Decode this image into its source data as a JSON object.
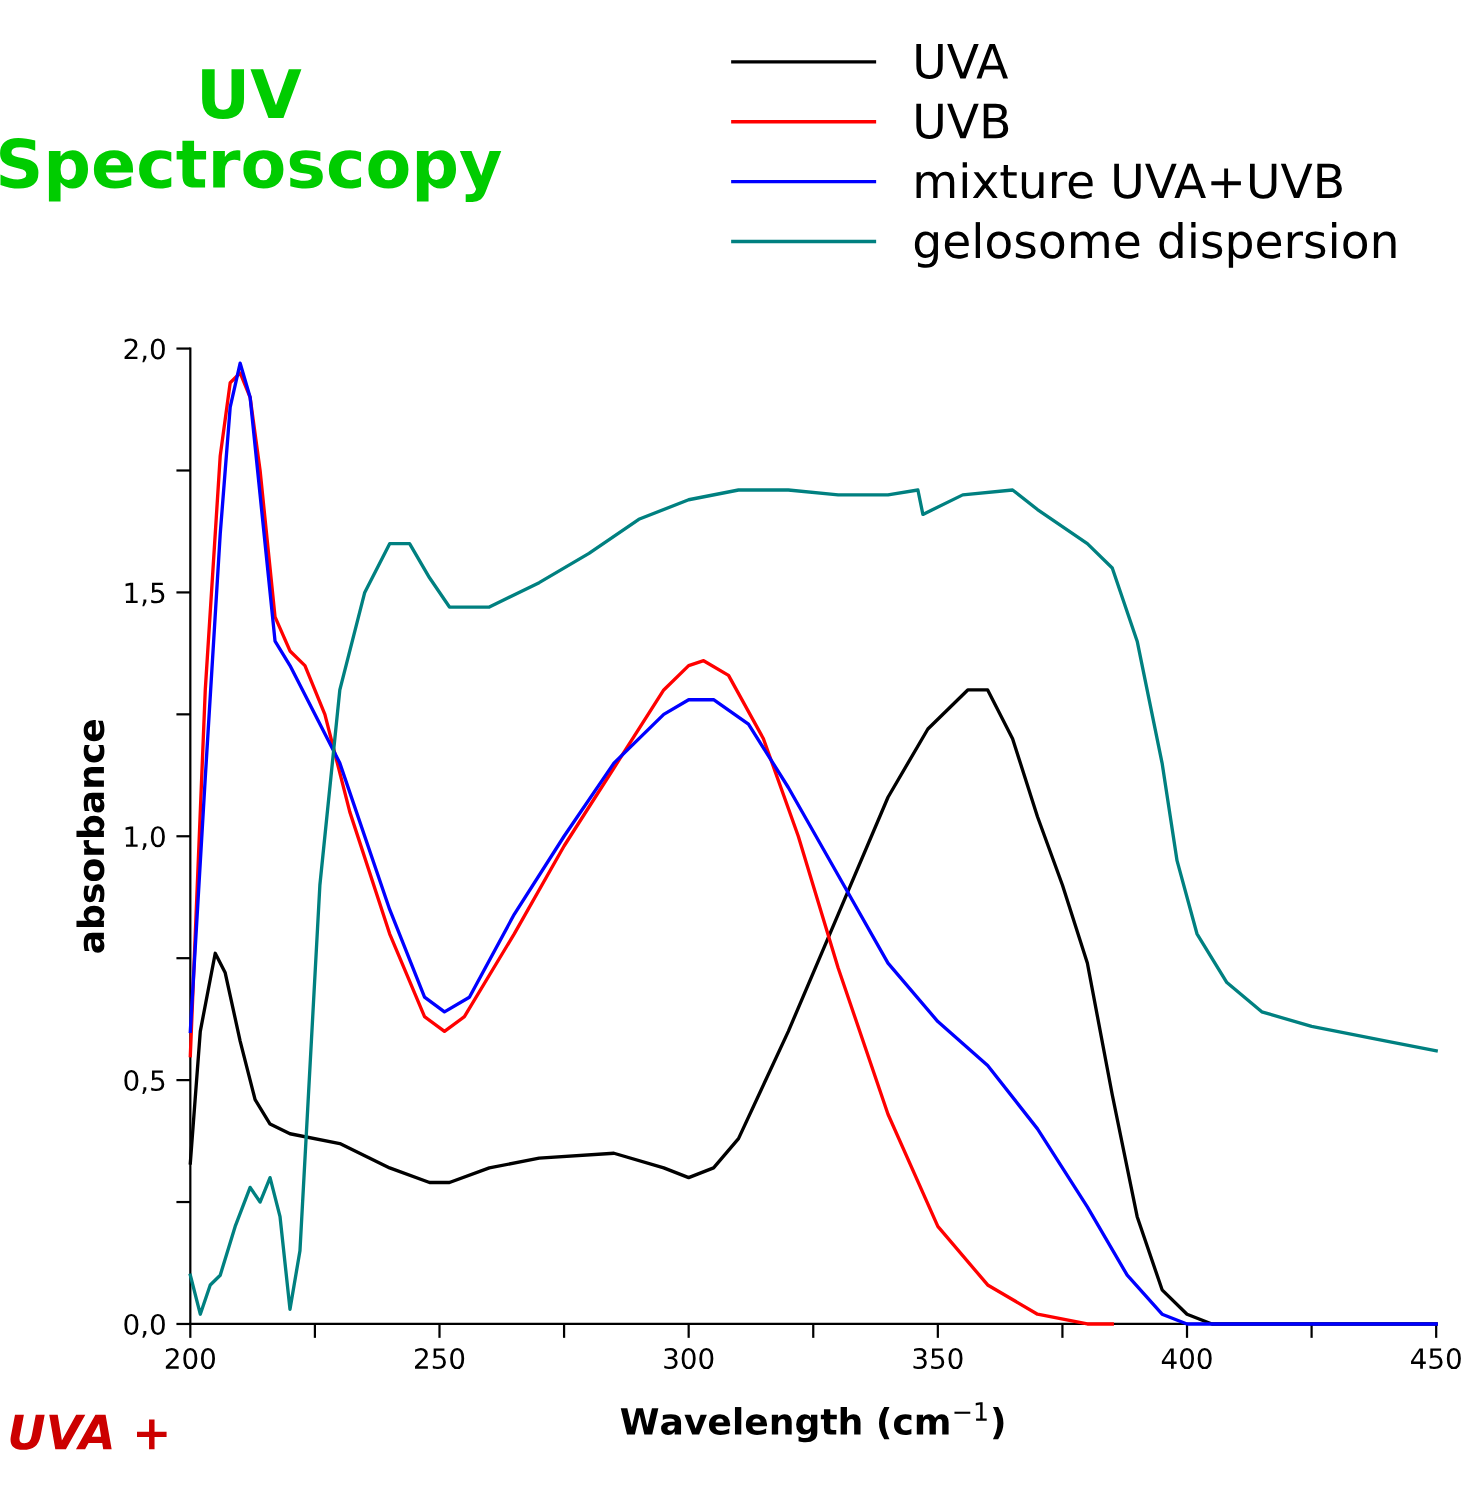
{
  "chart_data": {
    "type": "line",
    "title": "UV Spectroscopy",
    "xlabel": "Wavelength (cm$^{−1}$)",
    "ylabel": "absorbance",
    "annotations": [
      "UVA +"
    ],
    "xlim": [
      200,
      450
    ],
    "ylim": [
      0,
      2.0
    ],
    "xticks": [
      200,
      {
        "value": 225,
        "label": null
      },
      250,
      {
        "value": 275,
        "label": null
      },
      300,
      {
        "value": 325,
        "label": null
      },
      350,
      {
        "value": 375,
        "label": null
      },
      400,
      {
        "value": 425,
        "label": null
      },
      450
    ],
    "yticks": [
      {
        "value": 0,
        "label": "0,0"
      },
      {
        "value": 0.25,
        "label": null
      },
      {
        "value": 0.5,
        "label": "0,5"
      },
      {
        "value": 0.75,
        "label": null
      },
      {
        "value": 1.0,
        "label": "1,0"
      },
      {
        "value": 1.25,
        "label": null
      },
      {
        "value": 1.5,
        "label": "1,5"
      },
      {
        "value": 1.75,
        "label": null
      },
      {
        "value": 2.0,
        "label": "2,0"
      }
    ],
    "grid": false,
    "legend": "top right",
    "line_style": "solid",
    "marker": "none",
    "series": [
      {
        "name": "UVA",
        "color": "#000000",
        "x": [
          200,
          202,
          205,
          207,
          210,
          213,
          216,
          220,
          230,
          240,
          248,
          252,
          260,
          270,
          285,
          295,
          300,
          305,
          310,
          320,
          330,
          340,
          348,
          352,
          356,
          360,
          365,
          370,
          375,
          380,
          385,
          390,
          395,
          400,
          405,
          450
        ],
        "values": [
          0.33,
          0.6,
          0.76,
          0.72,
          0.58,
          0.46,
          0.41,
          0.39,
          0.37,
          0.32,
          0.29,
          0.29,
          0.32,
          0.34,
          0.35,
          0.32,
          0.3,
          0.32,
          0.38,
          0.6,
          0.84,
          1.08,
          1.22,
          1.26,
          1.3,
          1.3,
          1.2,
          1.04,
          0.9,
          0.74,
          0.47,
          0.22,
          0.07,
          0.02,
          0.0,
          0.0
        ]
      },
      {
        "name": "UVB",
        "color": "#ff0000",
        "x": [
          200,
          203,
          206,
          208,
          210,
          212,
          214,
          217,
          220,
          223,
          227,
          232,
          240,
          247,
          251,
          255,
          265,
          275,
          285,
          295,
          300,
          303,
          308,
          315,
          322,
          330,
          340,
          350,
          360,
          370,
          380,
          385
        ],
        "values": [
          0.55,
          1.3,
          1.78,
          1.93,
          1.95,
          1.9,
          1.75,
          1.45,
          1.38,
          1.35,
          1.25,
          1.05,
          0.8,
          0.63,
          0.6,
          0.63,
          0.8,
          0.98,
          1.14,
          1.3,
          1.35,
          1.36,
          1.33,
          1.2,
          1.0,
          0.73,
          0.43,
          0.2,
          0.08,
          0.02,
          0.0,
          0.0
        ]
      },
      {
        "name": "mixture UVA+UVB",
        "color": "#0000ff",
        "x": [
          200,
          203,
          206,
          208,
          210,
          212,
          214,
          217,
          220,
          230,
          240,
          247,
          251,
          256,
          265,
          275,
          285,
          295,
          300,
          305,
          312,
          320,
          330,
          340,
          350,
          360,
          370,
          380,
          388,
          395,
          400,
          450
        ],
        "values": [
          0.6,
          1.12,
          1.62,
          1.88,
          1.97,
          1.9,
          1.7,
          1.4,
          1.35,
          1.15,
          0.85,
          0.67,
          0.64,
          0.67,
          0.84,
          1.0,
          1.15,
          1.25,
          1.28,
          1.28,
          1.23,
          1.1,
          0.92,
          0.74,
          0.62,
          0.53,
          0.4,
          0.24,
          0.1,
          0.02,
          0.0,
          0.0
        ]
      },
      {
        "name": "gelosome dispersion",
        "color": "#008080",
        "x": [
          200,
          202,
          204,
          206,
          209,
          212,
          214,
          216,
          218,
          220,
          222,
          226,
          230,
          235,
          240,
          244,
          248,
          252,
          260,
          270,
          280,
          290,
          300,
          310,
          320,
          330,
          340,
          346,
          347,
          355,
          365,
          370,
          380,
          385,
          390,
          395,
          398,
          402,
          408,
          415,
          425,
          440,
          450
        ],
        "values": [
          0.1,
          0.02,
          0.08,
          0.1,
          0.2,
          0.28,
          0.25,
          0.3,
          0.22,
          0.03,
          0.15,
          0.9,
          1.3,
          1.5,
          1.6,
          1.6,
          1.53,
          1.47,
          1.47,
          1.52,
          1.58,
          1.65,
          1.69,
          1.71,
          1.71,
          1.7,
          1.7,
          1.71,
          1.66,
          1.7,
          1.71,
          1.67,
          1.6,
          1.55,
          1.4,
          1.15,
          0.95,
          0.8,
          0.7,
          0.64,
          0.61,
          0.58,
          0.56
        ]
      }
    ]
  }
}
